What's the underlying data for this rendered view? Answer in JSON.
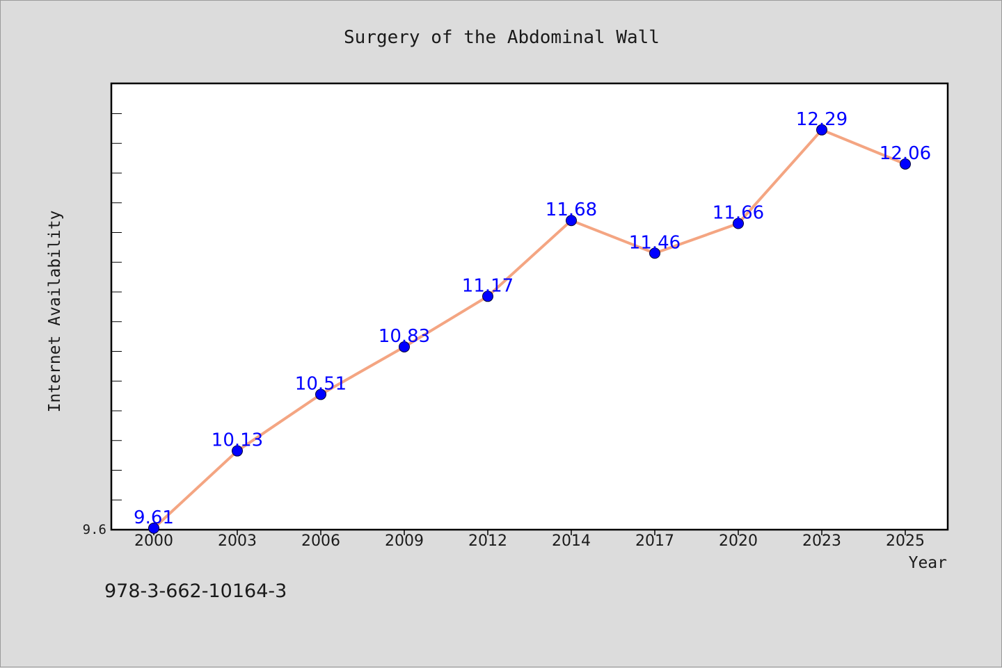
{
  "figure": {
    "background": "#dcdcdc",
    "plot_background": "#ffffff",
    "isbn": "978-3-662-10164-3"
  },
  "chart_data": {
    "type": "line",
    "title": "Surgery of the Abdominal Wall",
    "xlabel": "Year",
    "ylabel": "Internet Availability",
    "x": [
      "2000",
      "2003",
      "2006",
      "2009",
      "2012",
      "2014",
      "2017",
      "2020",
      "2023",
      "2025"
    ],
    "series": [
      {
        "values": [
          9.61,
          10.13,
          10.51,
          10.83,
          11.17,
          11.68,
          11.46,
          11.66,
          12.29,
          12.06
        ],
        "line_color": "#f4a582",
        "marker_color": "#0000ff",
        "label_color": "#0000ff"
      }
    ],
    "data_labels": [
      "9.61",
      "10.13",
      "10.51",
      "10.83",
      "11.17",
      "11.68",
      "11.46",
      "11.66",
      "12.29",
      "12.06"
    ],
    "ytick_labels": [
      "9.6"
    ],
    "ylim": [
      9.6,
      12.6
    ],
    "grid": false,
    "legend": "none"
  }
}
